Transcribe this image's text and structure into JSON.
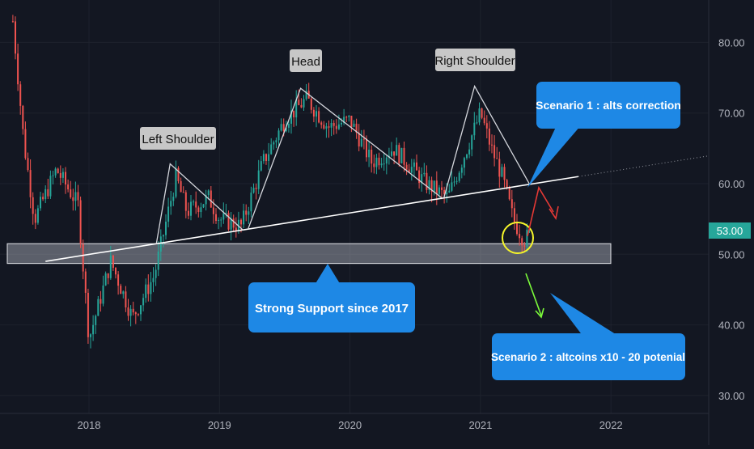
{
  "chart_data": {
    "type": "candlestick",
    "x_ticks": [
      "2018",
      "2019",
      "2020",
      "2021",
      "2022"
    ],
    "y_ticks": [
      "80.00",
      "70.00",
      "60.00",
      "50.00",
      "40.00",
      "30.00"
    ],
    "ylim": [
      28,
      88
    ],
    "grid": true,
    "last_price": {
      "value": 53.0,
      "label": "53.00"
    },
    "colors": {
      "up": "#26a69a",
      "down": "#ef5350",
      "background": "#131722",
      "badge": "#1e88e5"
    },
    "series_points": [
      {
        "date": "2017-06",
        "value": 83
      },
      {
        "date": "2017-07",
        "value": 66
      },
      {
        "date": "2017-08",
        "value": 55
      },
      {
        "date": "2017-10",
        "value": 62
      },
      {
        "date": "2017-12",
        "value": 57
      },
      {
        "date": "2018-01",
        "value": 38
      },
      {
        "date": "2018-03",
        "value": 49
      },
      {
        "date": "2018-05",
        "value": 41
      },
      {
        "date": "2018-07",
        "value": 47
      },
      {
        "date": "2018-09",
        "value": 61
      },
      {
        "date": "2018-10",
        "value": 56
      },
      {
        "date": "2018-12",
        "value": 58
      },
      {
        "date": "2019-01",
        "value": 55
      },
      {
        "date": "2019-03",
        "value": 54
      },
      {
        "date": "2019-05",
        "value": 63
      },
      {
        "date": "2019-07",
        "value": 69
      },
      {
        "date": "2019-09",
        "value": 72
      },
      {
        "date": "2019-11",
        "value": 68
      },
      {
        "date": "2020-01",
        "value": 69
      },
      {
        "date": "2020-03",
        "value": 63
      },
      {
        "date": "2020-05",
        "value": 65
      },
      {
        "date": "2020-08",
        "value": 60
      },
      {
        "date": "2020-10",
        "value": 58
      },
      {
        "date": "2020-11",
        "value": 62
      },
      {
        "date": "2021-01",
        "value": 70
      },
      {
        "date": "2021-02",
        "value": 65
      },
      {
        "date": "2021-03",
        "value": 61
      },
      {
        "date": "2021-04",
        "value": 55
      },
      {
        "date": "2021-05",
        "value": 52
      },
      {
        "date": "2021-05-20",
        "value": 53
      }
    ],
    "pattern": {
      "left_shoulder": {
        "label": "Left Shoulder",
        "date": "2018-08-15",
        "value": 62.8
      },
      "head": {
        "label": "Head",
        "date": "2019-08-15",
        "value": 73.5
      },
      "right_shoulder": {
        "label": "Right Shoulder",
        "date": "2020-12-15",
        "value": 73.8
      },
      "neckline": [
        {
          "date": "2017-09",
          "value": 49.0
        },
        {
          "date": "2021-10",
          "value": 61.0
        }
      ]
    },
    "support_zone": {
      "from": 48.7,
      "to": 51.5,
      "label": "Strong Support since 2017"
    },
    "annotations": [
      {
        "label": "Scenario 1 : alts correction"
      },
      {
        "label": "Scenario 2 : altcoins x10 - 20 potenial"
      }
    ]
  }
}
